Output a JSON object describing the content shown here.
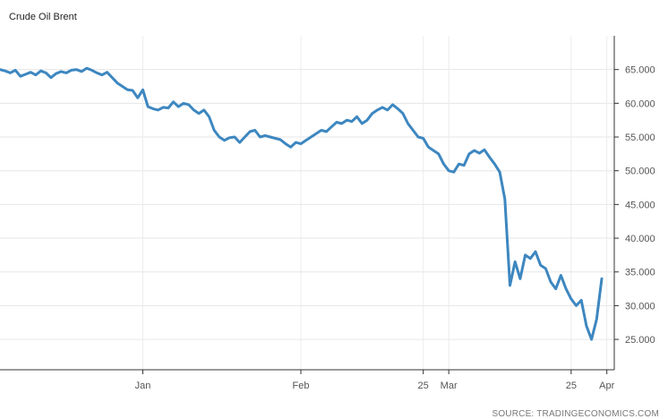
{
  "source_label": "SOURCE: TRADINGECONOMICS.COM",
  "chart_data": {
    "type": "line",
    "title": "Crude Oil Brent",
    "xlabel": "",
    "ylabel": "",
    "ylim": [
      20.5,
      70
    ],
    "y_ticks": [
      "25.000",
      "30.000",
      "35.000",
      "40.000",
      "45.000",
      "50.000",
      "55.000",
      "60.000",
      "65.000"
    ],
    "y_tick_values": [
      25,
      30,
      35,
      40,
      45,
      50,
      55,
      60,
      65
    ],
    "x_ticks": [
      "Jan",
      "Feb",
      "25",
      "Mar",
      "25",
      "Apr"
    ],
    "x_tick_dates": [
      "2020-01-01",
      "2020-02-01",
      "2020-02-25",
      "2020-03-01",
      "2020-03-25",
      "2020-04-01"
    ],
    "xlim": [
      "2019-12-04",
      "2020-03-31"
    ],
    "grid": true,
    "line_color": "#3d87c0",
    "series": [
      {
        "values": [
          [
            "2019-12-04",
            65.0
          ],
          [
            "2019-12-05",
            64.8
          ],
          [
            "2019-12-06",
            64.5
          ],
          [
            "2019-12-07",
            64.9
          ],
          [
            "2019-12-08",
            64.0
          ],
          [
            "2019-12-09",
            64.3
          ],
          [
            "2019-12-10",
            64.6
          ],
          [
            "2019-12-11",
            64.2
          ],
          [
            "2019-12-12",
            64.8
          ],
          [
            "2019-12-13",
            64.5
          ],
          [
            "2019-12-14",
            63.8
          ],
          [
            "2019-12-15",
            64.4
          ],
          [
            "2019-12-16",
            64.7
          ],
          [
            "2019-12-17",
            64.5
          ],
          [
            "2019-12-18",
            64.9
          ],
          [
            "2019-12-19",
            65.0
          ],
          [
            "2019-12-20",
            64.7
          ],
          [
            "2019-12-21",
            65.2
          ],
          [
            "2019-12-22",
            64.9
          ],
          [
            "2019-12-23",
            64.5
          ],
          [
            "2019-12-24",
            64.2
          ],
          [
            "2019-12-25",
            64.6
          ],
          [
            "2019-12-26",
            63.8
          ],
          [
            "2019-12-27",
            63.0
          ],
          [
            "2019-12-28",
            62.5
          ],
          [
            "2019-12-29",
            62.0
          ],
          [
            "2019-12-30",
            61.9
          ],
          [
            "2019-12-31",
            60.8
          ],
          [
            "2020-01-01",
            62.0
          ],
          [
            "2020-01-02",
            59.5
          ],
          [
            "2020-01-03",
            59.2
          ],
          [
            "2020-01-04",
            59.0
          ],
          [
            "2020-01-05",
            59.4
          ],
          [
            "2020-01-06",
            59.3
          ],
          [
            "2020-01-07",
            60.2
          ],
          [
            "2020-01-08",
            59.5
          ],
          [
            "2020-01-09",
            60.0
          ],
          [
            "2020-01-10",
            59.8
          ],
          [
            "2020-01-11",
            59.0
          ],
          [
            "2020-01-12",
            58.5
          ],
          [
            "2020-01-13",
            59.0
          ],
          [
            "2020-01-14",
            58.0
          ],
          [
            "2020-01-15",
            56.0
          ],
          [
            "2020-01-16",
            55.0
          ],
          [
            "2020-01-17",
            54.5
          ],
          [
            "2020-01-18",
            54.9
          ],
          [
            "2020-01-19",
            55.0
          ],
          [
            "2020-01-20",
            54.2
          ],
          [
            "2020-01-21",
            55.0
          ],
          [
            "2020-01-22",
            55.8
          ],
          [
            "2020-01-23",
            56.0
          ],
          [
            "2020-01-24",
            55.0
          ],
          [
            "2020-01-25",
            55.2
          ],
          [
            "2020-01-26",
            55.0
          ],
          [
            "2020-01-27",
            54.8
          ],
          [
            "2020-01-28",
            54.6
          ],
          [
            "2020-01-29",
            54.0
          ],
          [
            "2020-01-30",
            53.5
          ],
          [
            "2020-01-31",
            54.2
          ],
          [
            "2020-02-01",
            54.0
          ],
          [
            "2020-02-02",
            54.5
          ],
          [
            "2020-02-03",
            55.0
          ],
          [
            "2020-02-04",
            55.5
          ],
          [
            "2020-02-05",
            56.0
          ],
          [
            "2020-02-06",
            55.8
          ],
          [
            "2020-02-07",
            56.5
          ],
          [
            "2020-02-08",
            57.2
          ],
          [
            "2020-02-09",
            57.0
          ],
          [
            "2020-02-10",
            57.5
          ],
          [
            "2020-02-11",
            57.3
          ],
          [
            "2020-02-12",
            58.0
          ],
          [
            "2020-02-13",
            57.0
          ],
          [
            "2020-02-14",
            57.5
          ],
          [
            "2020-02-15",
            58.5
          ],
          [
            "2020-02-16",
            59.0
          ],
          [
            "2020-02-17",
            59.4
          ],
          [
            "2020-02-18",
            59.0
          ],
          [
            "2020-02-19",
            59.8
          ],
          [
            "2020-02-20",
            59.2
          ],
          [
            "2020-02-21",
            58.5
          ],
          [
            "2020-02-22",
            57.0
          ],
          [
            "2020-02-23",
            56.0
          ],
          [
            "2020-02-24",
            55.0
          ],
          [
            "2020-02-25",
            54.8
          ],
          [
            "2020-02-26",
            53.5
          ],
          [
            "2020-02-27",
            53.0
          ],
          [
            "2020-02-28",
            52.5
          ],
          [
            "2020-02-29",
            51.0
          ],
          [
            "2020-03-01",
            50.0
          ],
          [
            "2020-03-02",
            49.8
          ],
          [
            "2020-03-03",
            51.0
          ],
          [
            "2020-03-04",
            50.8
          ],
          [
            "2020-03-05",
            52.5
          ],
          [
            "2020-03-06",
            53.0
          ],
          [
            "2020-03-07",
            52.6
          ],
          [
            "2020-03-08",
            53.1
          ],
          [
            "2020-03-09",
            52.0
          ],
          [
            "2020-03-10",
            51.0
          ],
          [
            "2020-03-11",
            49.8
          ],
          [
            "2020-03-12",
            45.8
          ],
          [
            "2020-03-13",
            33.0
          ],
          [
            "2020-03-14",
            36.5
          ],
          [
            "2020-03-15",
            34.0
          ],
          [
            "2020-03-16",
            37.5
          ],
          [
            "2020-03-17",
            37.0
          ],
          [
            "2020-03-18",
            38.0
          ],
          [
            "2020-03-19",
            36.0
          ],
          [
            "2020-03-20",
            35.5
          ],
          [
            "2020-03-21",
            33.5
          ],
          [
            "2020-03-22",
            32.5
          ],
          [
            "2020-03-23",
            34.5
          ],
          [
            "2020-03-24",
            32.5
          ],
          [
            "2020-03-25",
            31.0
          ],
          [
            "2020-03-26",
            30.0
          ],
          [
            "2020-03-27",
            30.8
          ],
          [
            "2020-03-28",
            27.0
          ],
          [
            "2020-03-29",
            25.0
          ],
          [
            "2020-03-30",
            28.0
          ],
          [
            "2020-03-31",
            34.0
          ]
        ]
      }
    ]
  }
}
